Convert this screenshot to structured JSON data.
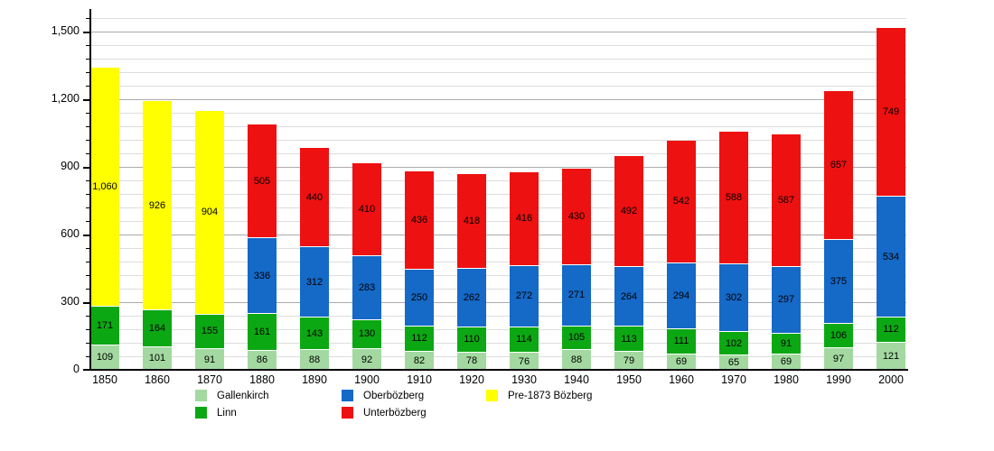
{
  "chart_data": {
    "type": "bar",
    "stacked": true,
    "title": "",
    "xlabel": "",
    "ylabel": "",
    "categories": [
      "1850",
      "1860",
      "1870",
      "1880",
      "1890",
      "1900",
      "1910",
      "1920",
      "1930",
      "1940",
      "1950",
      "1960",
      "1970",
      "1980",
      "1990",
      "2000"
    ],
    "series": [
      {
        "name": "Gallenkirch",
        "color": "#a3d9a0",
        "values": [
          109,
          101,
          91,
          86,
          88,
          92,
          82,
          78,
          76,
          88,
          79,
          69,
          65,
          69,
          97,
          121
        ]
      },
      {
        "name": "Linn",
        "color": "#0ca814",
        "values": [
          171,
          164,
          155,
          161,
          143,
          130,
          112,
          110,
          114,
          105,
          113,
          111,
          102,
          91,
          106,
          112
        ]
      },
      {
        "name": "Oberbözberg",
        "color": "#1569c7",
        "values": [
          0,
          0,
          0,
          336,
          312,
          283,
          250,
          262,
          272,
          271,
          264,
          294,
          302,
          297,
          375,
          534
        ]
      },
      {
        "name": "Unterbözberg",
        "color": "#ee1111",
        "values": [
          0,
          0,
          0,
          505,
          440,
          410,
          436,
          418,
          416,
          430,
          492,
          542,
          588,
          587,
          657,
          749
        ]
      },
      {
        "name": "Pre-1873 Bözberg",
        "color": "#ffff00",
        "values": [
          1060,
          926,
          904,
          0,
          0,
          0,
          0,
          0,
          0,
          0,
          0,
          0,
          0,
          0,
          0,
          0
        ]
      }
    ],
    "ylim": [
      0,
      1600
    ],
    "yticks_major": [
      0,
      300,
      600,
      900,
      1200,
      1500
    ],
    "minor_step": 60,
    "grid": "on",
    "legend_position": "bottom",
    "legend_columns": [
      [
        "Gallenkirch",
        "Linn"
      ],
      [
        "Oberbözberg",
        "Unterbözberg"
      ],
      [
        "Pre-1873 Bözberg"
      ]
    ],
    "colors": {
      "grid_minor": "#dddddd",
      "grid_major": "#ababab",
      "axis": "#000000",
      "label_text": "#000000"
    }
  }
}
